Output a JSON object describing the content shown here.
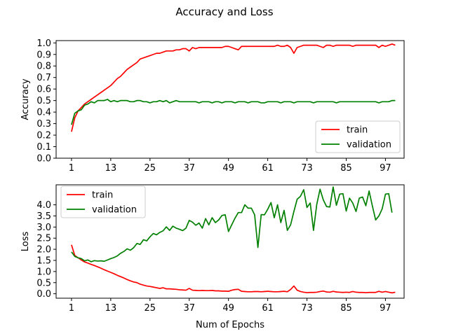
{
  "figure": {
    "title": "Accuracy and Loss"
  },
  "chart_data": [
    {
      "type": "line",
      "title": "",
      "xlabel": "",
      "ylabel": "Accuracy",
      "xlim": [
        -3.7,
        102.7
      ],
      "ylim": [
        0.0,
        1.02
      ],
      "xticks": [
        1,
        13,
        25,
        37,
        49,
        61,
        73,
        85,
        97
      ],
      "yticks": [
        0.0,
        0.1,
        0.2,
        0.3,
        0.4,
        0.5,
        0.6,
        0.7,
        0.8,
        0.9,
        1.0
      ],
      "grid": false,
      "legend": "lower right",
      "x_start": 1,
      "series": [
        {
          "name": "train",
          "color": "#ff0000",
          "values": [
            0.23,
            0.35,
            0.41,
            0.44,
            0.47,
            0.49,
            0.51,
            0.53,
            0.55,
            0.57,
            0.59,
            0.61,
            0.63,
            0.66,
            0.69,
            0.71,
            0.74,
            0.77,
            0.79,
            0.81,
            0.83,
            0.86,
            0.87,
            0.88,
            0.89,
            0.9,
            0.91,
            0.91,
            0.92,
            0.93,
            0.93,
            0.93,
            0.94,
            0.94,
            0.95,
            0.95,
            0.93,
            0.96,
            0.95,
            0.96,
            0.96,
            0.96,
            0.96,
            0.96,
            0.96,
            0.96,
            0.96,
            0.97,
            0.97,
            0.96,
            0.95,
            0.94,
            0.97,
            0.97,
            0.97,
            0.97,
            0.97,
            0.97,
            0.97,
            0.97,
            0.97,
            0.97,
            0.97,
            0.98,
            0.97,
            0.97,
            0.98,
            0.96,
            0.91,
            0.96,
            0.97,
            0.98,
            0.98,
            0.98,
            0.98,
            0.98,
            0.97,
            0.96,
            0.98,
            0.98,
            0.97,
            0.98,
            0.98,
            0.98,
            0.98,
            0.98,
            0.97,
            0.98,
            0.98,
            0.98,
            0.98,
            0.98,
            0.98,
            0.98,
            0.96,
            0.98,
            0.97,
            0.98,
            0.99,
            0.98
          ]
        },
        {
          "name": "validation",
          "color": "#008000",
          "values": [
            0.29,
            0.39,
            0.41,
            0.42,
            0.46,
            0.47,
            0.49,
            0.48,
            0.5,
            0.5,
            0.5,
            0.51,
            0.49,
            0.5,
            0.49,
            0.5,
            0.5,
            0.5,
            0.49,
            0.49,
            0.5,
            0.5,
            0.49,
            0.49,
            0.48,
            0.49,
            0.49,
            0.5,
            0.49,
            0.5,
            0.48,
            0.49,
            0.5,
            0.49,
            0.49,
            0.49,
            0.49,
            0.49,
            0.49,
            0.48,
            0.49,
            0.49,
            0.49,
            0.48,
            0.49,
            0.49,
            0.48,
            0.49,
            0.49,
            0.49,
            0.48,
            0.49,
            0.49,
            0.49,
            0.48,
            0.49,
            0.49,
            0.49,
            0.48,
            0.48,
            0.49,
            0.49,
            0.49,
            0.49,
            0.48,
            0.49,
            0.49,
            0.49,
            0.48,
            0.49,
            0.49,
            0.49,
            0.49,
            0.49,
            0.48,
            0.49,
            0.49,
            0.49,
            0.49,
            0.49,
            0.49,
            0.48,
            0.49,
            0.49,
            0.49,
            0.49,
            0.49,
            0.49,
            0.49,
            0.49,
            0.49,
            0.49,
            0.49,
            0.49,
            0.48,
            0.49,
            0.49,
            0.49,
            0.5,
            0.5
          ]
        }
      ]
    },
    {
      "type": "line",
      "title": "",
      "xlabel": "Num of Epochs",
      "ylabel": "Loss",
      "xlim": [
        -3.7,
        102.7
      ],
      "ylim": [
        -0.2,
        4.9
      ],
      "xticks": [
        1,
        13,
        25,
        37,
        49,
        61,
        73,
        85,
        97
      ],
      "yticks": [
        0.0,
        0.5,
        1.0,
        1.5,
        2.0,
        2.5,
        3.0,
        3.5,
        4.0
      ],
      "yticklabels": [
        "0.0",
        "0.5",
        "1.0",
        "1.5",
        "2.0",
        "2.5",
        "3.0",
        "3.5",
        "4.0"
      ],
      "grid": false,
      "legend": "upper left",
      "x_start": 1,
      "series": [
        {
          "name": "train",
          "color": "#ff0000",
          "values": [
            2.2,
            1.72,
            1.62,
            1.52,
            1.43,
            1.38,
            1.32,
            1.27,
            1.21,
            1.15,
            1.08,
            1.02,
            0.96,
            0.9,
            0.83,
            0.77,
            0.71,
            0.64,
            0.58,
            0.53,
            0.5,
            0.43,
            0.39,
            0.35,
            0.33,
            0.3,
            0.27,
            0.24,
            0.27,
            0.22,
            0.22,
            0.21,
            0.2,
            0.18,
            0.17,
            0.16,
            0.24,
            0.16,
            0.15,
            0.14,
            0.15,
            0.14,
            0.14,
            0.15,
            0.13,
            0.13,
            0.12,
            0.12,
            0.11,
            0.16,
            0.19,
            0.2,
            0.11,
            0.1,
            0.09,
            0.09,
            0.1,
            0.1,
            0.09,
            0.1,
            0.11,
            0.1,
            0.09,
            0.09,
            0.1,
            0.11,
            0.09,
            0.19,
            0.35,
            0.16,
            0.1,
            0.07,
            0.05,
            0.06,
            0.06,
            0.07,
            0.1,
            0.12,
            0.08,
            0.07,
            0.11,
            0.08,
            0.07,
            0.06,
            0.07,
            0.06,
            0.1,
            0.07,
            0.06,
            0.06,
            0.05,
            0.06,
            0.06,
            0.06,
            0.11,
            0.07,
            0.1,
            0.07,
            0.04,
            0.07
          ]
        },
        {
          "name": "validation",
          "color": "#008000",
          "values": [
            1.88,
            1.68,
            1.62,
            1.58,
            1.48,
            1.52,
            1.44,
            1.49,
            1.47,
            1.48,
            1.46,
            1.52,
            1.58,
            1.63,
            1.7,
            1.82,
            1.9,
            2.02,
            1.96,
            2.07,
            2.26,
            2.22,
            2.43,
            2.38,
            2.56,
            2.71,
            2.65,
            2.76,
            2.83,
            3.01,
            2.85,
            3.04,
            2.95,
            2.9,
            2.84,
            2.95,
            3.3,
            3.22,
            3.08,
            3.18,
            2.95,
            3.38,
            3.1,
            3.42,
            3.2,
            3.32,
            3.52,
            3.55,
            2.8,
            3.1,
            3.4,
            3.65,
            3.65,
            4.0,
            3.85,
            3.85,
            3.55,
            2.08,
            3.56,
            3.55,
            3.8,
            4.1,
            3.42,
            4.0,
            3.2,
            3.75,
            2.85,
            3.1,
            3.7,
            4.25,
            4.38,
            4.68,
            3.88,
            4.08,
            2.85,
            4.02,
            4.7,
            4.22,
            3.92,
            3.9,
            4.8,
            3.98,
            4.48,
            4.5,
            3.72,
            4.3,
            4.08,
            3.7,
            4.3,
            4.35,
            3.96,
            4.62,
            3.95,
            3.32,
            3.5,
            3.82,
            4.48,
            4.5,
            3.65
          ]
        }
      ]
    }
  ]
}
